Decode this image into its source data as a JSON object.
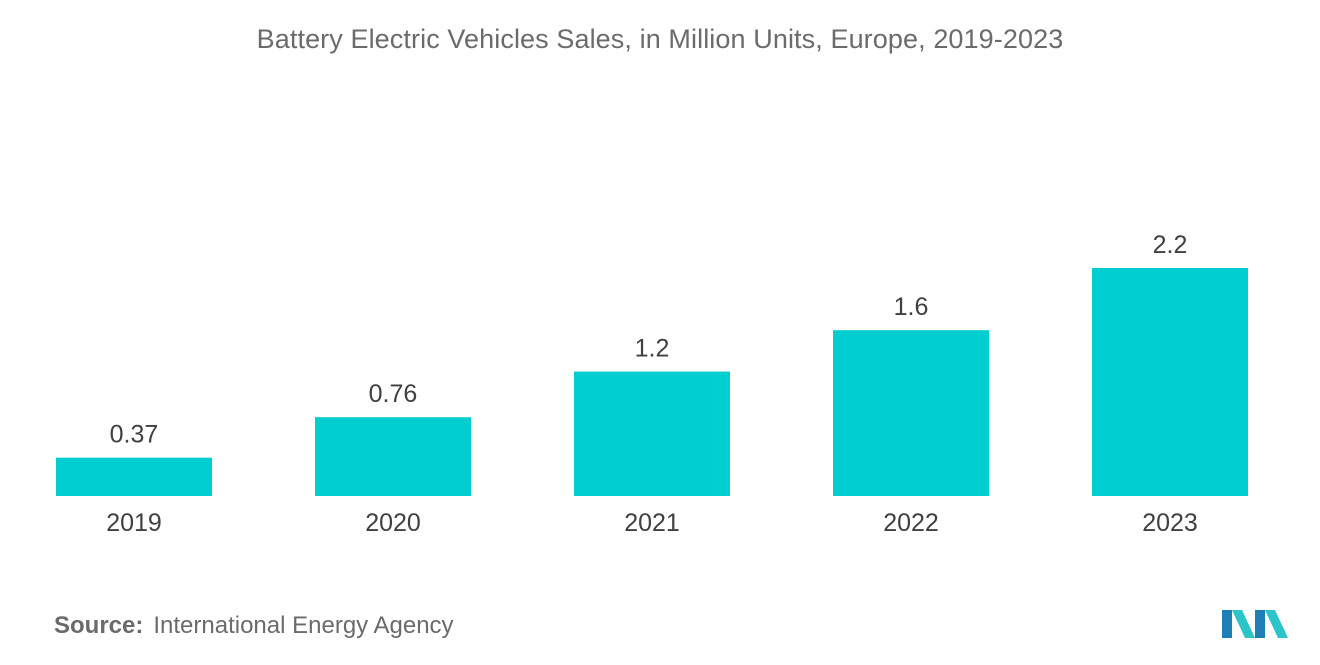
{
  "chart_data": {
    "type": "bar",
    "title": "Battery Electric Vehicles Sales, in Million Units, Europe, 2019-2023",
    "categories": [
      "2019",
      "2020",
      "2021",
      "2022",
      "2023"
    ],
    "values": [
      0.37,
      0.76,
      1.2,
      1.6,
      2.2
    ],
    "value_labels": [
      "0.37",
      "0.76",
      "1.2",
      "1.6",
      "2.2"
    ],
    "xlabel": "",
    "ylabel": "",
    "ylim": [
      0,
      2.2
    ],
    "grid": false,
    "bar_color": "#00ced1"
  },
  "source": {
    "label": "Source:",
    "text": "International Energy Agency"
  },
  "logo": {
    "icon": "mordor-intelligence-logo-icon",
    "colors": [
      "#1c7fb6",
      "#2bc4c8"
    ]
  }
}
